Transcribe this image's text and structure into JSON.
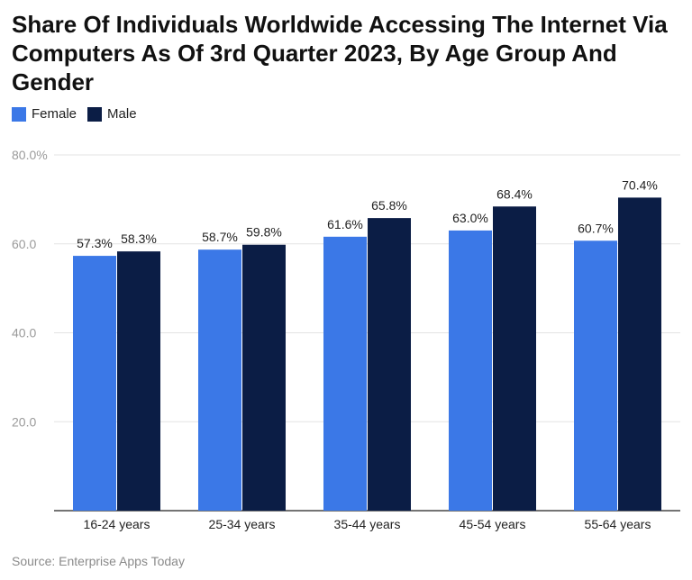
{
  "title": "Share Of Individuals Worldwide Accessing The Internet Via Computers As Of 3rd Quarter 2023, By Age Group And Gender",
  "source": "Source: Enterprise Apps Today",
  "chart_data": {
    "type": "bar",
    "categories": [
      "16-24 years",
      "25-34 years",
      "35-44 years",
      "45-54 years",
      "55-64 years"
    ],
    "series": [
      {
        "name": "Female",
        "values": [
          57.3,
          58.7,
          61.6,
          63.0,
          60.7
        ],
        "labels": [
          "57.3%",
          "58.7%",
          "61.6%",
          "63.0%",
          "60.7%"
        ],
        "color": "#3b78e7"
      },
      {
        "name": "Male",
        "values": [
          58.3,
          59.8,
          65.8,
          68.4,
          70.4
        ],
        "labels": [
          "58.3%",
          "59.8%",
          "65.8%",
          "68.4%",
          "70.4%"
        ],
        "color": "#0b1d45"
      }
    ],
    "yticks": [
      20,
      40,
      60,
      80
    ],
    "ytick_labels": [
      "20.0",
      "40.0",
      "60.0",
      "80.0%"
    ],
    "ylim": [
      0,
      80
    ],
    "grid": true,
    "legend": "top-left"
  }
}
